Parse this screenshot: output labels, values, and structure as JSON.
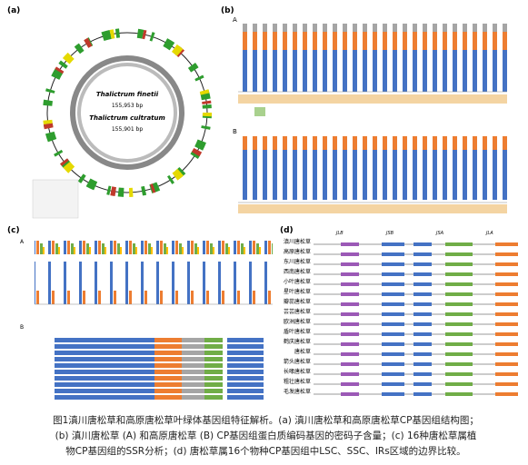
{
  "figure": {
    "panel_a": {
      "label": "(a)",
      "species_1": "Thalictrum finetii",
      "length_1": "155,953 bp",
      "species_2": "Thalictrum cultratum",
      "length_2": "155,901 bp"
    },
    "panel_b": {
      "label": "(b)",
      "sub_a": "A",
      "sub_b": "B"
    },
    "panel_c": {
      "label": "(c)",
      "sub_a": "A",
      "sub_b": "B"
    },
    "panel_d": {
      "label": "(d)",
      "regions": [
        "JLB",
        "JSB",
        "JSA",
        "JLA"
      ],
      "species": [
        "滇川唐松草",
        "高原唐松草",
        "东川唐松草",
        "西南唐松草",
        "小叶唐松草",
        "星叶唐松草",
        "瓣蕊唐松草",
        "芸芸唐松草",
        "欧洲唐松草",
        "盾叶唐松草",
        "鹤庆唐松草",
        "唐松草",
        "箭头唐松草",
        "长喙唐松草",
        "粗壮唐松草",
        "毛发唐松草"
      ]
    },
    "caption": [
      "图1滇川唐松草和高原唐松草叶绿体基因组特征解析。(a) 滇川唐松草和高原唐松草CP基因组结构图；",
      "(b) 滇川唐松草 (A) 和高原唐松草 (B) CP基因组蛋白质编码基因的密码子含量；(c) 16种唐松草属植",
      "物CP基因组的SSR分析；(d) 唐松草属16个物种CP基因组中LSC、SSC、IRs区域的边界比较。"
    ]
  }
}
